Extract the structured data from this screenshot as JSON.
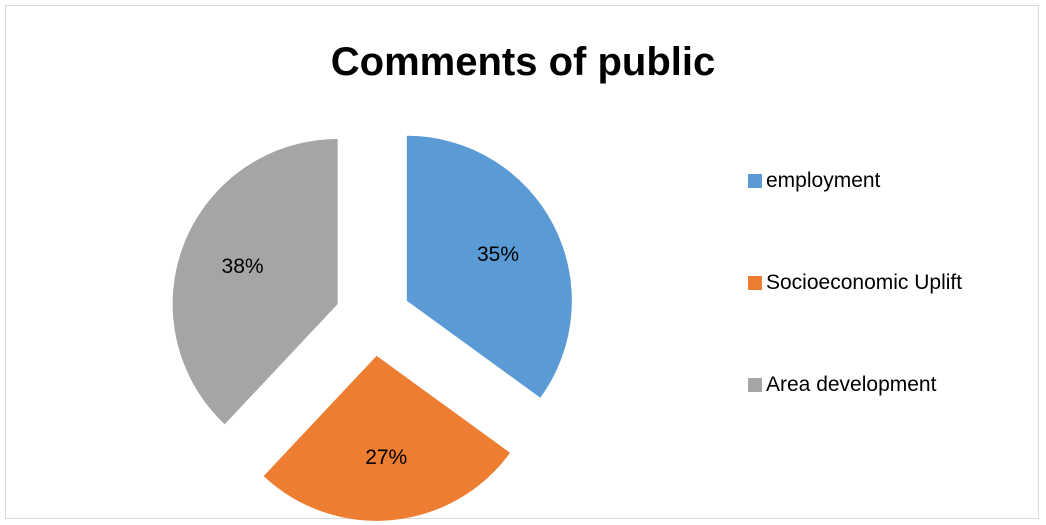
{
  "chart_data": {
    "type": "pie",
    "title": "Comments of public",
    "slices": [
      {
        "name": "employment",
        "value": 35,
        "label": "35%",
        "color": "#5b9bd5"
      },
      {
        "name": "Socioeconomic Uplift",
        "value": 27,
        "label": "27%",
        "color": "#ed7d31"
      },
      {
        "name": "Area development",
        "value": 38,
        "label": "38%",
        "color": "#a5a5a5"
      }
    ],
    "exploded": true,
    "legend_position": "right"
  }
}
